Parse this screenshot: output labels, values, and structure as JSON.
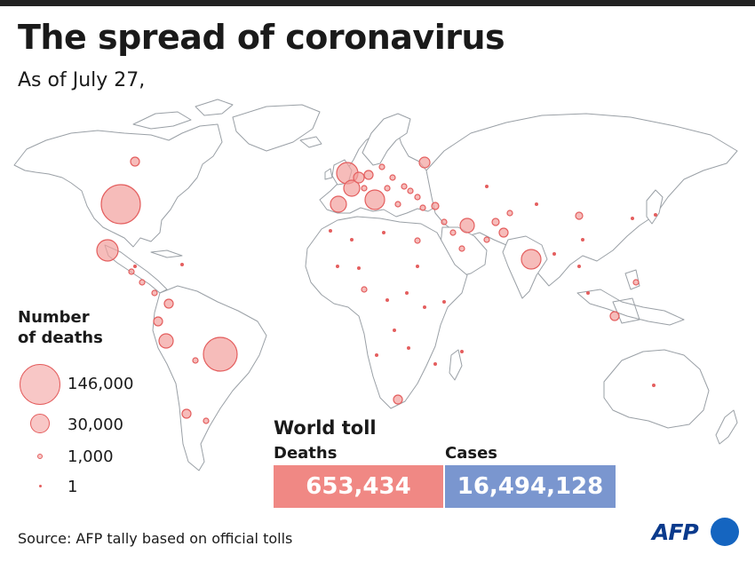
{
  "header": {
    "title": "The spread of coronavirus",
    "subtitle": "As of July 27,"
  },
  "legend": {
    "title_line1": "Number",
    "title_line2": "of deaths",
    "items": [
      {
        "label": "146,000",
        "deaths": 146000
      },
      {
        "label": "30,000",
        "deaths": 30000
      },
      {
        "label": "1,000",
        "deaths": 1000
      },
      {
        "label": "1",
        "deaths": 1
      }
    ]
  },
  "world_toll": {
    "title": "World toll",
    "deaths_label": "Deaths",
    "cases_label": "Cases",
    "deaths_value": "653,434",
    "cases_value": "16,494,128"
  },
  "footer": {
    "source": "Source: AFP tally based on official tolls",
    "logo_text": "AFP"
  },
  "colors": {
    "bubble_fill": "#f2a09c",
    "bubble_stroke": "#e45e5e",
    "deaths_box": "#f08884",
    "cases_box": "#7a96cf",
    "land_stroke": "#9aa0a6",
    "logo_blue": "#1565c0"
  },
  "map": {
    "type": "proportional-symbol world map",
    "size_encoding": "circle area proportional to number of deaths"
  }
}
